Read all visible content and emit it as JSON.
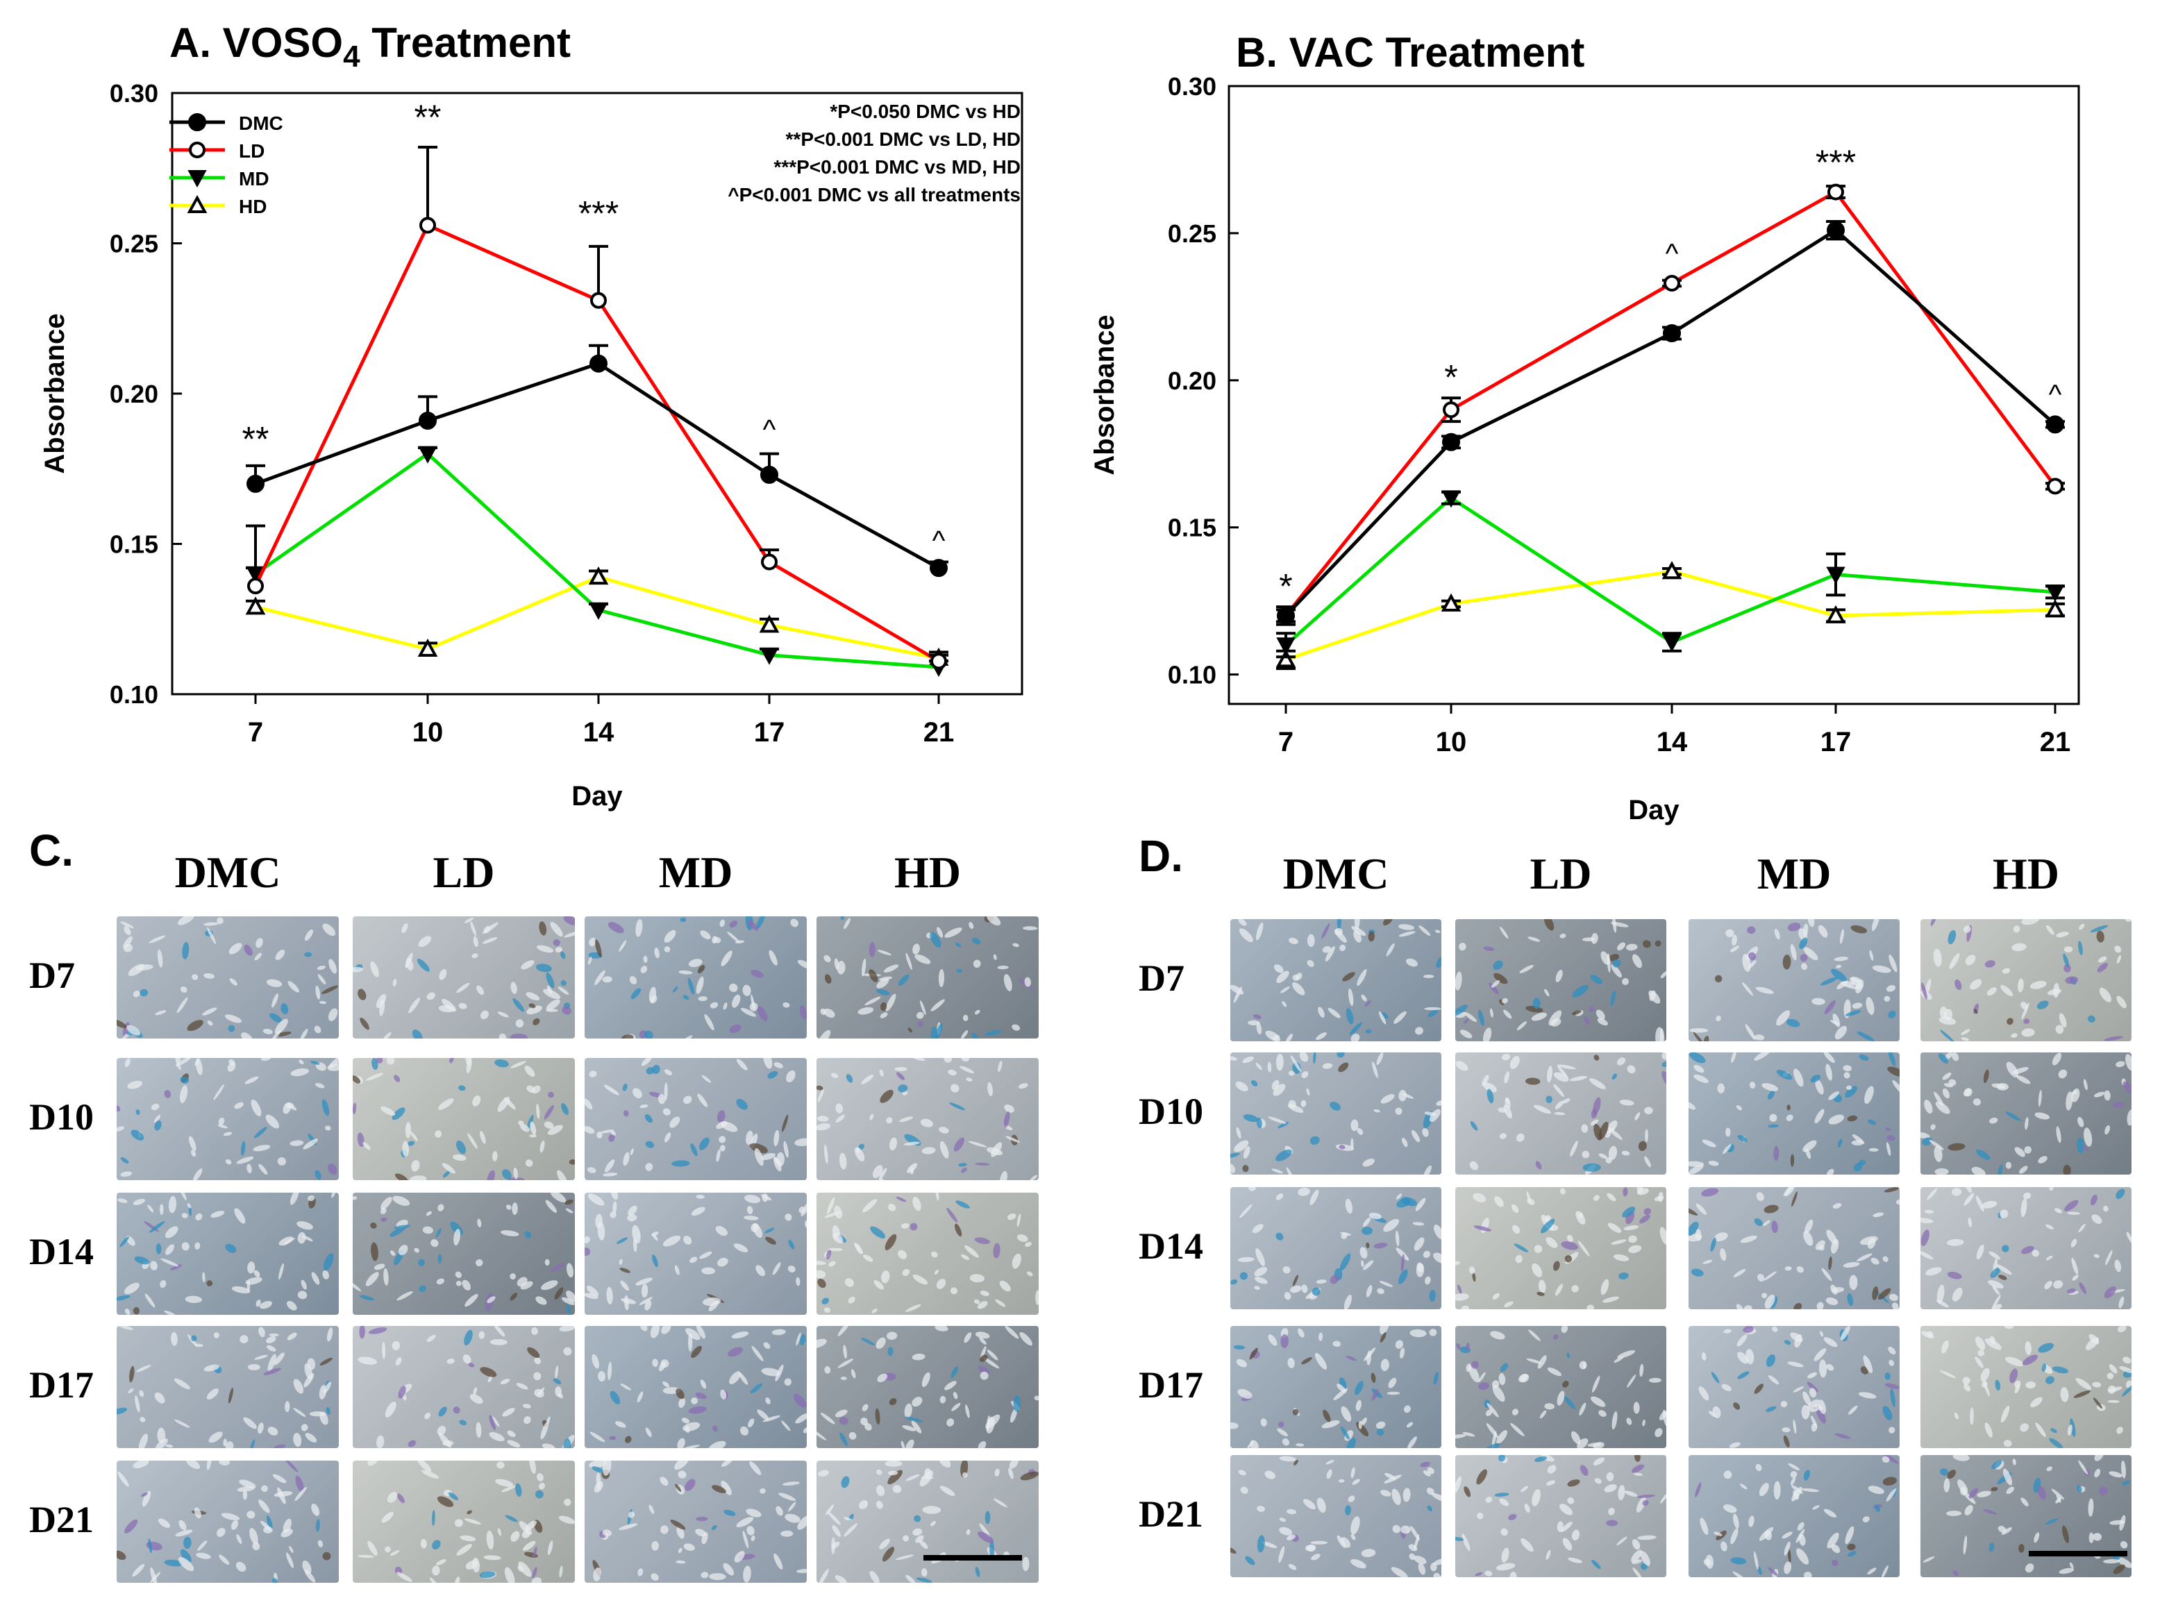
{
  "charts": [
    {
      "id": "A",
      "title": "A. VOSO4 Treatment",
      "title_main": "A. VOSO",
      "title_sub": "4",
      "title_rest": " Treatment",
      "chart_data": {
        "type": "line",
        "title": "A. VOSO4 Treatment",
        "xlabel": "Day",
        "ylabel": "Absorbance",
        "categories": [
          "7",
          "10",
          "14",
          "17",
          "21"
        ],
        "ylim": [
          0.1,
          0.3
        ],
        "yticks": [
          "0.10",
          "0.15",
          "0.20",
          "0.25",
          "0.30"
        ],
        "legend_position": "top-left",
        "series": [
          {
            "name": "DMC",
            "color": "#000000",
            "marker": "filled-circle",
            "values": [
              0.17,
              0.191,
              0.21,
              0.173,
              0.142
            ],
            "errors": [
              0.006,
              0.008,
              0.006,
              0.007,
              0.002
            ]
          },
          {
            "name": "LD",
            "color": "#ff0000",
            "marker": "open-circle",
            "values": [
              0.136,
              0.256,
              0.231,
              0.144,
              0.111
            ],
            "errors": [
              0.02,
              0.026,
              0.018,
              0.004,
              0.002
            ]
          },
          {
            "name": "MD",
            "color": "#00e000",
            "marker": "filled-triangle-down",
            "values": [
              0.14,
              0.18,
              0.128,
              0.113,
              0.109
            ],
            "errors": [
              0.002,
              0.002,
              0.002,
              0.002,
              0.002
            ]
          },
          {
            "name": "HD",
            "color": "#ffff00",
            "marker": "open-triangle-up",
            "values": [
              0.129,
              0.115,
              0.139,
              0.123,
              0.112
            ],
            "errors": [
              0.002,
              0.002,
              0.002,
              0.002,
              0.002
            ]
          }
        ],
        "annotations": [
          {
            "x": "7",
            "y": 0.181,
            "text": "**"
          },
          {
            "x": "10",
            "y": 0.288,
            "text": "**"
          },
          {
            "x": "14",
            "y": 0.256,
            "text": "***"
          },
          {
            "x": "17",
            "y": 0.185,
            "text": "^"
          },
          {
            "x": "21",
            "y": 0.148,
            "text": "^"
          }
        ],
        "stat_notes": [
          "*P<0.050 DMC vs HD",
          "**P<0.001 DMC vs LD, HD",
          "***P<0.001 DMC vs MD, HD",
          "^P<0.001 DMC vs all treatments"
        ]
      }
    },
    {
      "id": "B",
      "title": "B. VAC Treatment",
      "title_main": "B. VAC Treatment",
      "title_sub": "",
      "title_rest": "",
      "chart_data": {
        "type": "line",
        "title": "B. VAC Treatment",
        "xlabel": "Day",
        "ylabel": "Absorbance",
        "categories": [
          "7",
          "10",
          "14",
          "17",
          "21"
        ],
        "ylim": [
          0.09,
          0.3
        ],
        "yticks": [
          "0.10",
          "0.15",
          "0.20",
          "0.25",
          "0.30"
        ],
        "legend_position": "none",
        "series": [
          {
            "name": "DMC",
            "color": "#000000",
            "marker": "filled-circle",
            "values": [
              0.12,
              0.179,
              0.216,
              0.251,
              0.185
            ],
            "errors": [
              0.002,
              0.002,
              0.002,
              0.003,
              0.001
            ]
          },
          {
            "name": "LD",
            "color": "#ff0000",
            "marker": "open-circle",
            "values": [
              0.12,
              0.19,
              0.233,
              0.264,
              0.164
            ],
            "errors": [
              0.003,
              0.004,
              0.001,
              0.002,
              0.001
            ]
          },
          {
            "name": "MD",
            "color": "#00e000",
            "marker": "filled-triangle-down",
            "values": [
              0.11,
              0.16,
              0.111,
              0.134,
              0.128
            ],
            "errors": [
              0.004,
              0.002,
              0.003,
              0.007,
              0.002
            ]
          },
          {
            "name": "HD",
            "color": "#ffff00",
            "marker": "open-triangle-up",
            "values": [
              0.105,
              0.124,
              0.135,
              0.12,
              0.122
            ],
            "errors": [
              0.003,
              0.001,
              0.001,
              0.002,
              0.002
            ]
          }
        ],
        "annotations": [
          {
            "x": "7",
            "y": 0.126,
            "text": "*"
          },
          {
            "x": "10",
            "y": 0.197,
            "text": "*"
          },
          {
            "x": "14",
            "y": 0.24,
            "text": "^"
          },
          {
            "x": "17",
            "y": 0.27,
            "text": "***"
          },
          {
            "x": "21",
            "y": 0.192,
            "text": "^"
          }
        ],
        "stat_notes": []
      }
    }
  ],
  "micrographs": {
    "C": {
      "label": "C.",
      "columns": [
        "DMC",
        "LD",
        "MD",
        "HD"
      ],
      "rows": [
        "D7",
        "D10",
        "D14",
        "D17",
        "D21"
      ]
    },
    "D": {
      "label": "D.",
      "columns": [
        "DMC",
        "LD",
        "MD",
        "HD"
      ],
      "rows": [
        "D7",
        "D10",
        "D14",
        "D17",
        "D21"
      ]
    }
  }
}
